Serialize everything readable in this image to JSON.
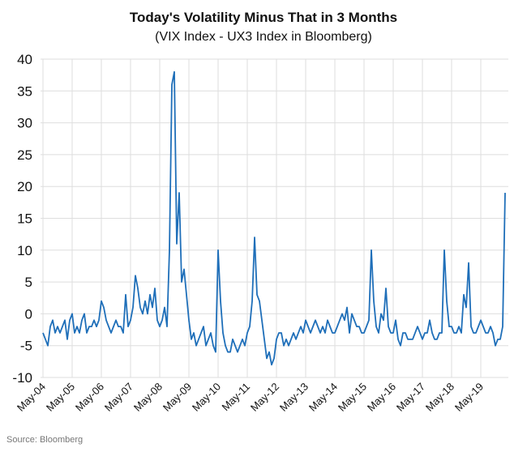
{
  "chart_data": {
    "type": "line",
    "title": "Today's Volatility Minus That in 3 Months",
    "subtitle": "(VIX Index - UX3 Index in Bloomberg)",
    "source": "Source: Bloomberg",
    "categories": [
      "May-04",
      null,
      null,
      null,
      null,
      null,
      null,
      null,
      null,
      null,
      null,
      null,
      "May-05",
      null,
      null,
      null,
      null,
      null,
      null,
      null,
      null,
      null,
      null,
      null,
      "May-06",
      null,
      null,
      null,
      null,
      null,
      null,
      null,
      null,
      null,
      null,
      null,
      "May-07",
      null,
      null,
      null,
      null,
      null,
      null,
      null,
      null,
      null,
      null,
      null,
      "May-08",
      null,
      null,
      null,
      null,
      null,
      null,
      null,
      null,
      null,
      null,
      null,
      "May-09",
      null,
      null,
      null,
      null,
      null,
      null,
      null,
      null,
      null,
      null,
      null,
      "May-10",
      null,
      null,
      null,
      null,
      null,
      null,
      null,
      null,
      null,
      null,
      null,
      "May-11",
      null,
      null,
      null,
      null,
      null,
      null,
      null,
      null,
      null,
      null,
      null,
      "May-12",
      null,
      null,
      null,
      null,
      null,
      null,
      null,
      null,
      null,
      null,
      null,
      "May-13",
      null,
      null,
      null,
      null,
      null,
      null,
      null,
      null,
      null,
      null,
      null,
      "May-14",
      null,
      null,
      null,
      null,
      null,
      null,
      null,
      null,
      null,
      null,
      null,
      "May-15",
      null,
      null,
      null,
      null,
      null,
      null,
      null,
      null,
      null,
      null,
      null,
      "May-16",
      null,
      null,
      null,
      null,
      null,
      null,
      null,
      null,
      null,
      null,
      null,
      "May-17",
      null,
      null,
      null,
      null,
      null,
      null,
      null,
      null,
      null,
      null,
      null,
      "May-18",
      null,
      null,
      null,
      null,
      null,
      null,
      null,
      null,
      null,
      null,
      null,
      "May-19",
      null,
      null,
      null,
      null,
      null,
      null,
      null,
      null,
      null,
      null
    ],
    "values": [
      -3,
      -4,
      -5,
      -2,
      -1,
      -3,
      -2,
      -3,
      -2,
      -1,
      -4,
      -1,
      0,
      -3,
      -2,
      -3,
      -1,
      0,
      -3,
      -2,
      -2,
      -1,
      -2,
      -1,
      2,
      1,
      -1,
      -2,
      -3,
      -2,
      -1,
      -2,
      -2,
      -3,
      3,
      -2,
      -1,
      1,
      6,
      4,
      1,
      0,
      2,
      0,
      3,
      1,
      4,
      -1,
      -2,
      -1,
      1,
      -2,
      10,
      36,
      38,
      11,
      19,
      5,
      7,
      3,
      -1,
      -4,
      -3,
      -5,
      -4,
      -3,
      -2,
      -5,
      -4,
      -3,
      -5,
      -6,
      10,
      2,
      -3,
      -5,
      -6,
      -6,
      -4,
      -5,
      -6,
      -5,
      -4,
      -5,
      -3,
      -2,
      2,
      12,
      3,
      2,
      -1,
      -4,
      -7,
      -6,
      -8,
      -7,
      -4,
      -3,
      -3,
      -5,
      -4,
      -5,
      -4,
      -3,
      -4,
      -3,
      -2,
      -3,
      -1,
      -2,
      -3,
      -2,
      -1,
      -2,
      -3,
      -2,
      -3,
      -1,
      -2,
      -3,
      -3,
      -2,
      -1,
      0,
      -1,
      1,
      -3,
      0,
      -1,
      -2,
      -2,
      -3,
      -3,
      -2,
      -1,
      10,
      2,
      -2,
      -3,
      0,
      -1,
      4,
      -2,
      -3,
      -3,
      -1,
      -4,
      -5,
      -3,
      -3,
      -4,
      -4,
      -4,
      -3,
      -2,
      -3,
      -4,
      -3,
      -3,
      -1,
      -3,
      -4,
      -4,
      -3,
      -3,
      10,
      2,
      -2,
      -2,
      -3,
      -3,
      -2,
      -3,
      3,
      1,
      8,
      -2,
      -3,
      -3,
      -2,
      -1,
      -2,
      -3,
      -3,
      -2,
      -3,
      -5,
      -4,
      -4,
      -2,
      19
    ],
    "color": "#1f6fb9",
    "ylim": [
      -10,
      40
    ],
    "yticks": [
      -10,
      -5,
      0,
      5,
      10,
      15,
      20,
      25,
      30,
      35,
      40
    ],
    "grid": true
  }
}
